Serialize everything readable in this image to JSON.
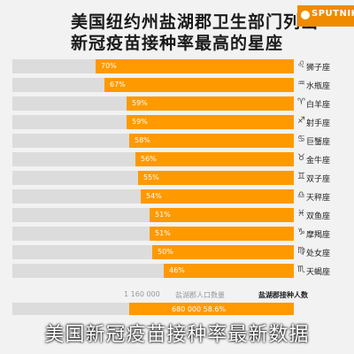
{
  "title_lines": [
    "美国纽约州盐湖郡卫生部门列出",
    "新冠疫苗接种率最高的星座"
  ],
  "logo": {
    "text": "SPUTNIK",
    "color": "#f08a00"
  },
  "colors": {
    "bar": "#ff9900",
    "track": "#dcdcdc",
    "background": "#f2f2f2"
  },
  "chart_data": {
    "type": "bar",
    "orientation": "horizontal",
    "title": "美国纽约州盐湖郡卫生部门列出新冠疫苗接种率最高的星座",
    "categories": [
      "狮子座",
      "水瓶座",
      "白羊座",
      "射手座",
      "巨蟹座",
      "金牛座",
      "双子座",
      "天秤座",
      "双鱼座",
      "摩羯座",
      "处女座",
      "天蝎座"
    ],
    "icons": [
      "♌",
      "♒",
      "♈",
      "♐",
      "♋",
      "♉",
      "♊",
      "♎",
      "♓",
      "♑",
      "♍",
      "♏"
    ],
    "values": [
      70,
      67,
      59,
      59,
      58,
      56,
      55,
      54,
      51,
      51,
      50,
      46
    ],
    "value_labels": [
      "70%",
      "67%",
      "59%",
      "59%",
      "58%",
      "56%",
      "55%",
      "54%",
      "51%",
      "51%",
      "50%",
      "46%"
    ],
    "xlim": [
      0,
      100
    ]
  },
  "footer": {
    "label_total": "1 160 000",
    "label_population": "盐湖郡人口数量",
    "label_vaccinated": "盐湖郡接种人数",
    "bar_text": "680 000 58.6%",
    "bar_fraction": 0.586
  },
  "caption": "美国新冠疫苗接种率最新数据"
}
